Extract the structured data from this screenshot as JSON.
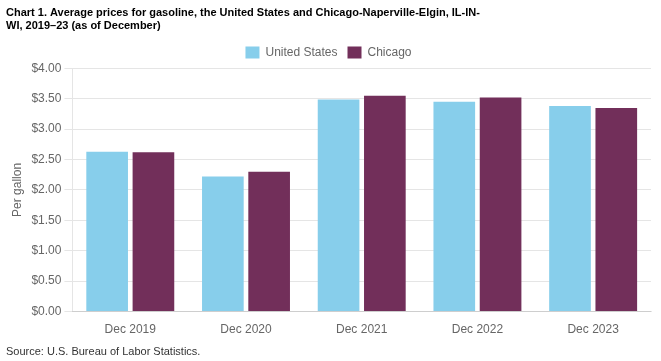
{
  "chart_data": {
    "type": "bar",
    "title": "Chart 1. Average prices for gasoline, the United States and Chicago-Naperville-Elgin, IL-IN-\nWI, 2019–23 (as of December)",
    "ylabel": "Per gallon",
    "annotations": [
      "Source: U.S. Bureau of Labor Statistics."
    ],
    "categories": [
      "Dec 2019",
      "Dec 2020",
      "Dec 2021",
      "Dec 2022",
      "Dec 2023"
    ],
    "series": [
      {
        "name": "United States",
        "color": "#87CEEB",
        "values": [
          2.63,
          2.22,
          3.49,
          3.45,
          3.38
        ]
      },
      {
        "name": "Chicago",
        "color": "#722F5A",
        "values": [
          2.62,
          2.3,
          3.55,
          3.52,
          3.35
        ]
      }
    ],
    "ylim": [
      0,
      4.0
    ],
    "yticks": [
      {
        "value": 0.0,
        "label": "$0.00"
      },
      {
        "value": 0.5,
        "label": "$0.50"
      },
      {
        "value": 1.0,
        "label": "$1.00"
      },
      {
        "value": 1.5,
        "label": "$1.50"
      },
      {
        "value": 2.0,
        "label": "$2.00"
      },
      {
        "value": 2.5,
        "label": "$2.50"
      },
      {
        "value": 3.0,
        "label": "$3.00"
      },
      {
        "value": 3.5,
        "label": "$3.50"
      },
      {
        "value": 4.0,
        "label": "$4.00"
      }
    ],
    "grid": true,
    "legend": "top"
  }
}
